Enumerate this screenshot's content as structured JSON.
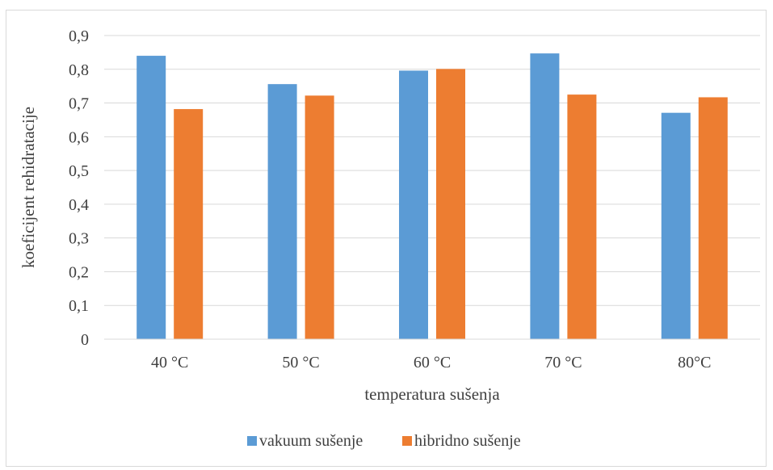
{
  "chart_data": {
    "type": "bar",
    "categories": [
      "40 °C",
      "50 °C",
      "60 °C",
      "70 °C",
      "80°C"
    ],
    "series": [
      {
        "name": "vakuum sušenje",
        "color": "#5b9bd5",
        "values": [
          0.84,
          0.756,
          0.796,
          0.847,
          0.671
        ]
      },
      {
        "name": "hibridno sušenje",
        "color": "#ed7d31",
        "values": [
          0.682,
          0.722,
          0.801,
          0.725,
          0.717
        ]
      }
    ],
    "xlabel": "temperatura sušenja",
    "ylabel": "koeficijent rehidratacije",
    "ylim": [
      0,
      0.9
    ],
    "yticks": [
      "0",
      "0,1",
      "0,2",
      "0,3",
      "0,4",
      "0,5",
      "0,6",
      "0,7",
      "0,8",
      "0,9"
    ],
    "grid": true,
    "legend_position": "bottom"
  }
}
